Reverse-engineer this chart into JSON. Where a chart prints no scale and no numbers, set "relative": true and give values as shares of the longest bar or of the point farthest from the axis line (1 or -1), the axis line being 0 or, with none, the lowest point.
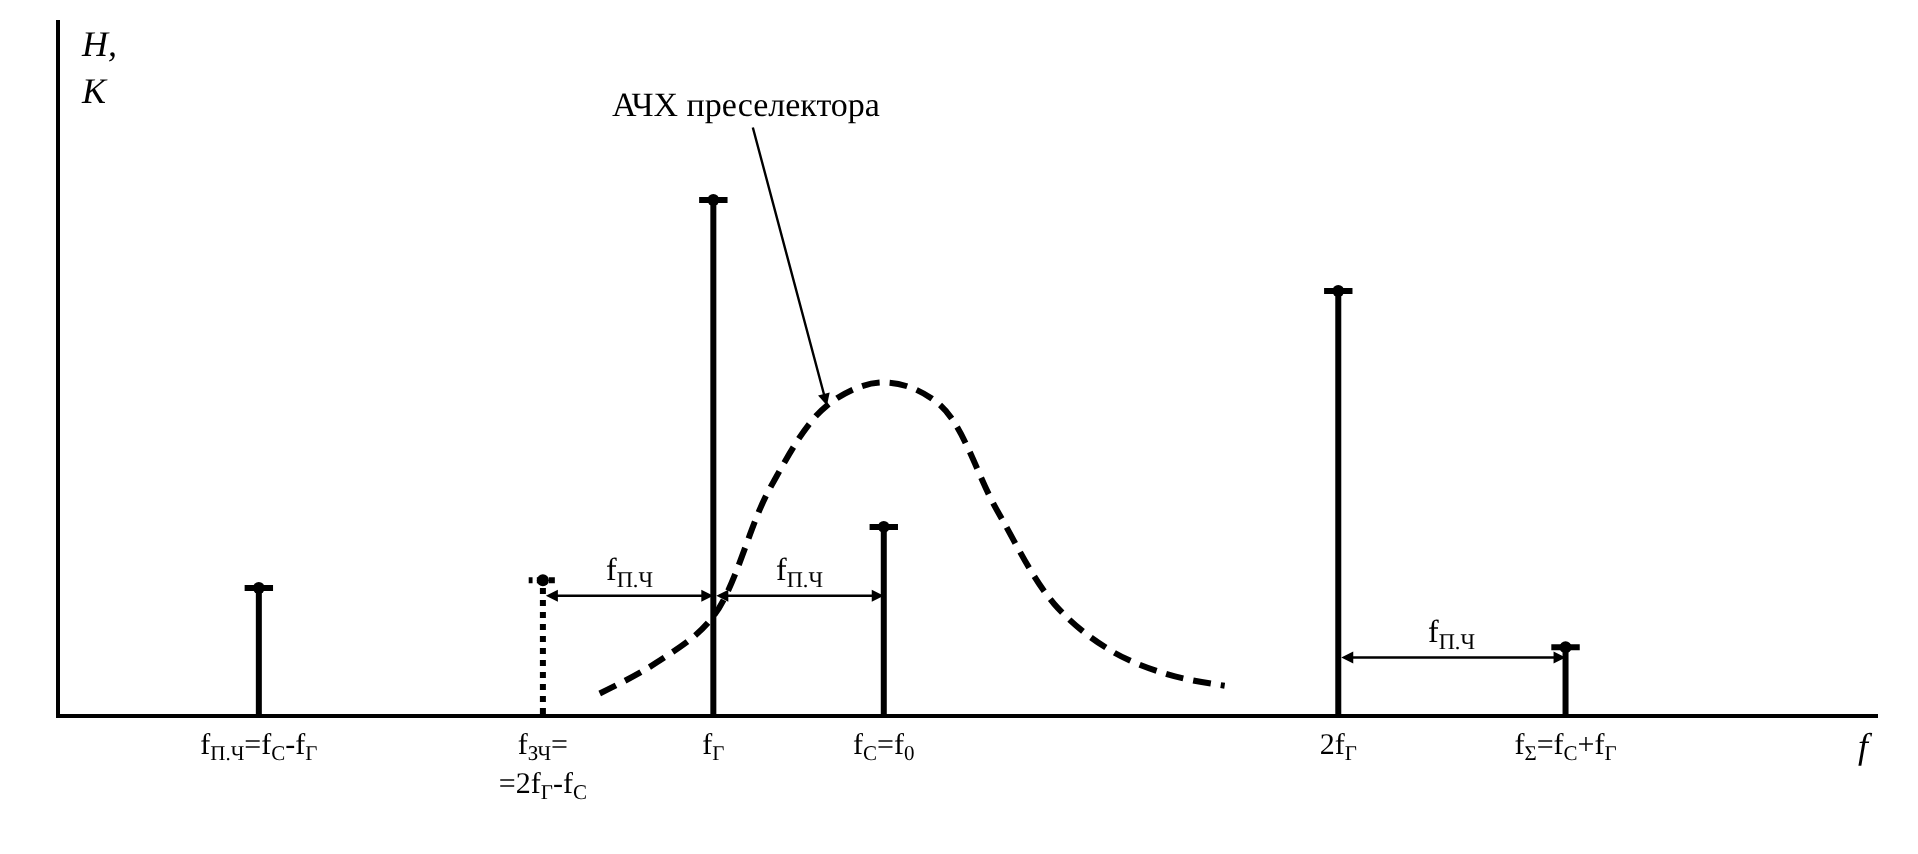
{
  "chart_data": {
    "type": "lollipop",
    "relative": true,
    "xlabel": "f",
    "ylabel": "H,\nK",
    "categories": [
      null,
      null,
      null,
      "f$_{П.Ч}$=f$_{С}$-f$_{Г}$",
      null,
      null,
      null,
      null,
      "f$_{ЗЧ}$=\n=2f$_{Г}$-f$_{С}$",
      null,
      null,
      "f$_{Г}$",
      null,
      null,
      "f$_{С}$=f$_{0}$",
      null,
      null,
      null,
      null,
      null,
      null,
      null,
      "2f$_{Г}$",
      null,
      null,
      null,
      "f$_{Σ}$=f$_{С}$+f$_{Г}$",
      null,
      null,
      null,
      null,
      null
    ],
    "series": [
      {
        "color": "#000000",
        "line_style": "solid",
        "values": [
          null,
          null,
          null,
          0.245,
          null,
          null,
          null,
          null,
          null,
          null,
          null,
          1,
          null,
          null,
          0.364,
          null,
          null,
          null,
          null,
          null,
          null,
          null,
          0.823,
          null,
          null,
          null,
          0.13,
          null,
          null,
          null,
          null,
          null
        ]
      },
      {
        "color": "#000000",
        "line_style": "dotted",
        "values": [
          null,
          null,
          null,
          null,
          null,
          null,
          null,
          null,
          0.26,
          null,
          null,
          null,
          null,
          null,
          null,
          null,
          null,
          null,
          null,
          null,
          null,
          null,
          null,
          null,
          null,
          null,
          null,
          null,
          null,
          null,
          null,
          null
        ]
      },
      {
        "type": "line",
        "color": "#000000",
        "line_style": "dashed",
        "values": [
          null,
          null,
          null,
          null,
          null,
          null,
          null,
          null,
          null,
          0.04,
          0.1,
          0.19,
          0.44,
          0.6,
          0.645,
          0.6,
          0.395,
          0.214,
          0.123,
          0.077,
          0.055,
          null,
          null,
          null,
          null,
          null,
          null,
          null,
          null,
          null,
          null,
          null
        ]
      }
    ],
    "annotations": [
      "АЧХ преселектора",
      "f$_{П.Ч}$",
      "f$_{П.Ч}$",
      "f$_{П.Ч}$"
    ]
  }
}
